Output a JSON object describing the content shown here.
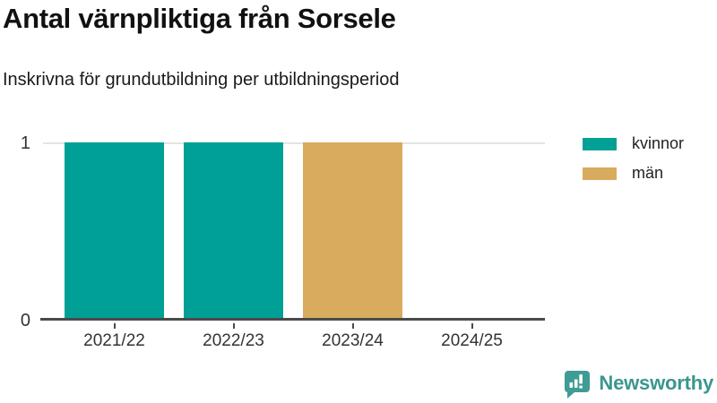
{
  "header": {
    "title": "Antal värnpliktiga från Sorsele",
    "subtitle": "Inskrivna för grundutbildning per utbildningsperiod"
  },
  "chart_data": {
    "type": "bar",
    "stacked": true,
    "title": "Antal värnpliktiga från Sorsele",
    "subtitle": "Inskrivna för grundutbildning per utbildningsperiod",
    "categories": [
      "2021/22",
      "2022/23",
      "2023/24",
      "2024/25"
    ],
    "series": [
      {
        "name": "kvinnor",
        "color": "#00a096",
        "values": [
          1,
          1,
          0,
          0
        ]
      },
      {
        "name": "män",
        "color": "#d9ab5e",
        "values": [
          0,
          0,
          1,
          0
        ]
      }
    ],
    "xlabel": "",
    "ylabel": "",
    "ylim": [
      0,
      1
    ],
    "yticks": [
      0,
      1
    ],
    "grid": "top gridline at y=1 only, dark baseline at y=0",
    "legend_position": "top-right"
  },
  "axis": {
    "y_top_label": "1",
    "y_bottom_label": "0"
  },
  "branding": {
    "logo_text": "Newsworthy",
    "logo_color": "#3a968f"
  }
}
